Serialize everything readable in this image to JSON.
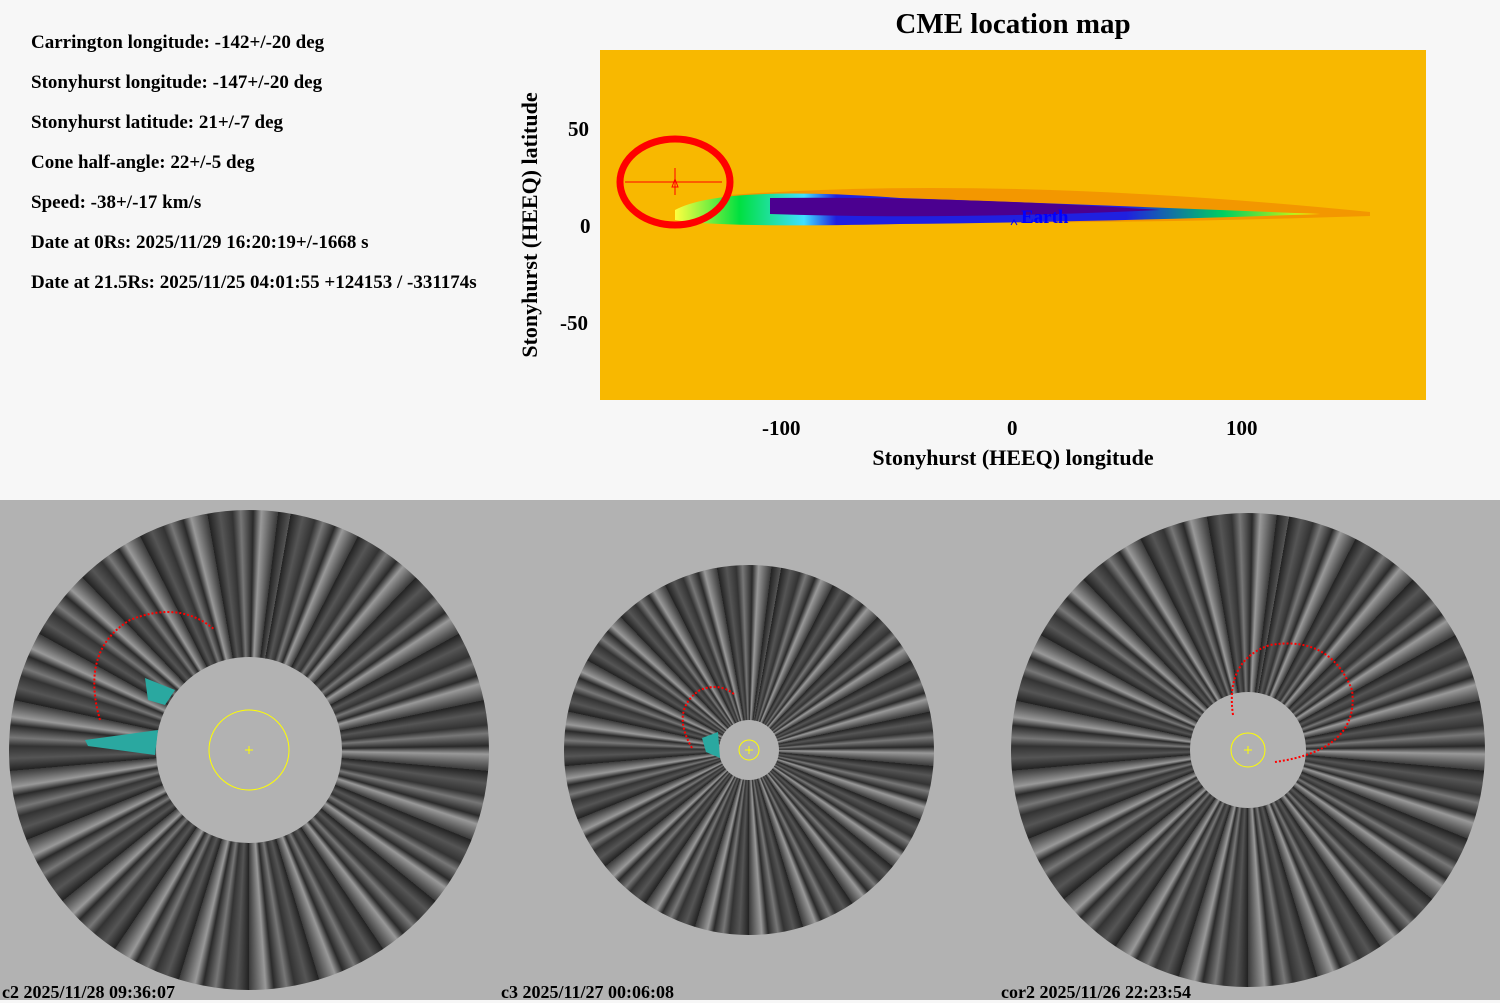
{
  "info": [
    "Carrington longitude: -142+/-20 deg",
    "Stonyhurst longitude: -147+/-20 deg",
    "Stonyhurst latitude: 21+/-7 deg",
    "Cone half-angle: 22+/-5 deg",
    "Speed: -38+/-17 km/s",
    "Date at 0Rs: 2025/11/29 16:20:19+/-1668 s",
    "Date at 21.5Rs: 2025/11/25 04:01:55 +124153 / -331174s"
  ],
  "map": {
    "title": "CME location map",
    "xlabel": "Stonyhurst (HEEQ) longitude",
    "ylabel": "Stonyhurst (HEEQ) latitude",
    "xticks": [
      "-100",
      "0",
      "100"
    ],
    "yticks": [
      "50",
      "0",
      "-50"
    ],
    "xlim": [
      -180,
      180
    ],
    "ylim": [
      -90,
      90
    ],
    "earth_label": "Earth",
    "earth": {
      "lon": 0,
      "lat": 0
    },
    "cme": {
      "lon": -147,
      "lat": 21
    },
    "background_color": "#f8b800",
    "highlight_color": "#ff0000"
  },
  "images": [
    {
      "caption": "c2 2025/11/28 09:36:07"
    },
    {
      "caption": "c3 2025/11/27 00:06:08"
    },
    {
      "caption": "cor2 2025/11/26 22:23:54"
    }
  ]
}
